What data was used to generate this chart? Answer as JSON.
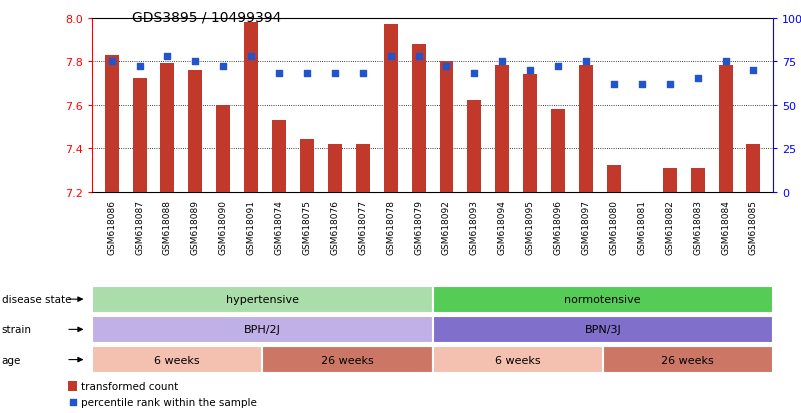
{
  "title": "GDS3895 / 10499394",
  "samples": [
    "GSM618086",
    "GSM618087",
    "GSM618088",
    "GSM618089",
    "GSM618090",
    "GSM618091",
    "GSM618074",
    "GSM618075",
    "GSM618076",
    "GSM618077",
    "GSM618078",
    "GSM618079",
    "GSM618092",
    "GSM618093",
    "GSM618094",
    "GSM618095",
    "GSM618096",
    "GSM618097",
    "GSM618080",
    "GSM618081",
    "GSM618082",
    "GSM618083",
    "GSM618084",
    "GSM618085"
  ],
  "bar_values": [
    7.83,
    7.72,
    7.79,
    7.76,
    7.6,
    7.98,
    7.53,
    7.44,
    7.42,
    7.42,
    7.97,
    7.88,
    7.8,
    7.62,
    7.78,
    7.74,
    7.58,
    7.78,
    7.32,
    7.2,
    7.31,
    7.31,
    7.78,
    7.42
  ],
  "percentile_values": [
    75,
    72,
    78,
    75,
    72,
    78,
    68,
    68,
    68,
    68,
    78,
    78,
    72,
    68,
    75,
    70,
    72,
    75,
    62,
    62,
    62,
    65,
    75,
    70
  ],
  "ylim_left": [
    7.2,
    8.0
  ],
  "ylim_right": [
    0,
    100
  ],
  "yticks_left": [
    7.2,
    7.4,
    7.6,
    7.8,
    8.0
  ],
  "yticks_right": [
    0,
    25,
    50,
    75,
    100
  ],
  "bar_color": "#c0392b",
  "dot_color": "#2255cc",
  "background_color": "#ffffff",
  "grid_values": [
    7.4,
    7.6,
    7.8
  ],
  "color_hyp": "#aaddaa",
  "color_norm": "#55cc55",
  "color_bph": "#c0b0e8",
  "color_bpn": "#8070cc",
  "color_6w": "#f4c0b0",
  "color_26w": "#cc7766",
  "legend_bar_label": "transformed count",
  "legend_dot_label": "percentile rank within the sample",
  "base_value": 7.2
}
